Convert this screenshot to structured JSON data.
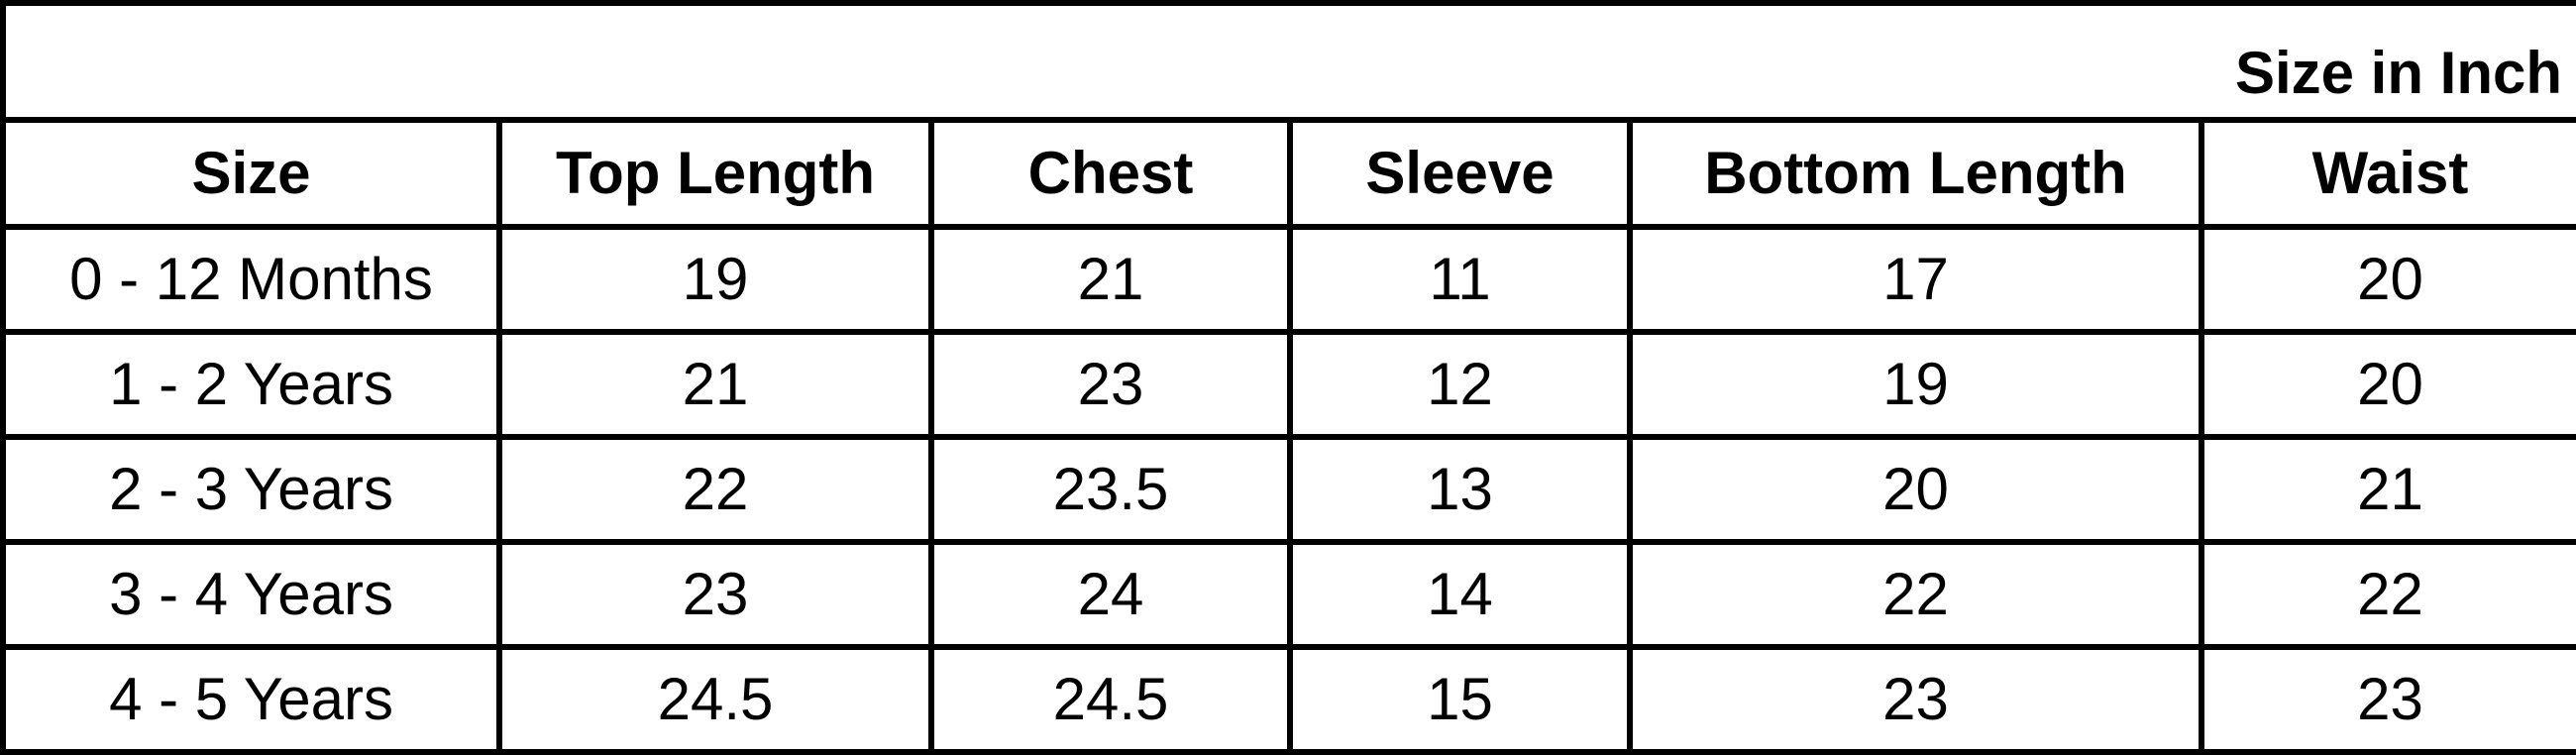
{
  "caption": "Size in Inch",
  "columns": [
    "Size",
    "Top Length",
    "Chest",
    "Sleeve",
    "Bottom Length",
    "Waist"
  ],
  "rows": [
    [
      "0 - 12 Months",
      "19",
      "21",
      "11",
      "17",
      "20"
    ],
    [
      "1 - 2 Years",
      "21",
      "23",
      "12",
      "19",
      "20"
    ],
    [
      "2 - 3 Years",
      "22",
      "23.5",
      "13",
      "20",
      "21"
    ],
    [
      "3 - 4 Years",
      "23",
      "24",
      "14",
      "22",
      "22"
    ],
    [
      "4 - 5 Years",
      "24.5",
      "24.5",
      "15",
      "23",
      "23"
    ]
  ]
}
